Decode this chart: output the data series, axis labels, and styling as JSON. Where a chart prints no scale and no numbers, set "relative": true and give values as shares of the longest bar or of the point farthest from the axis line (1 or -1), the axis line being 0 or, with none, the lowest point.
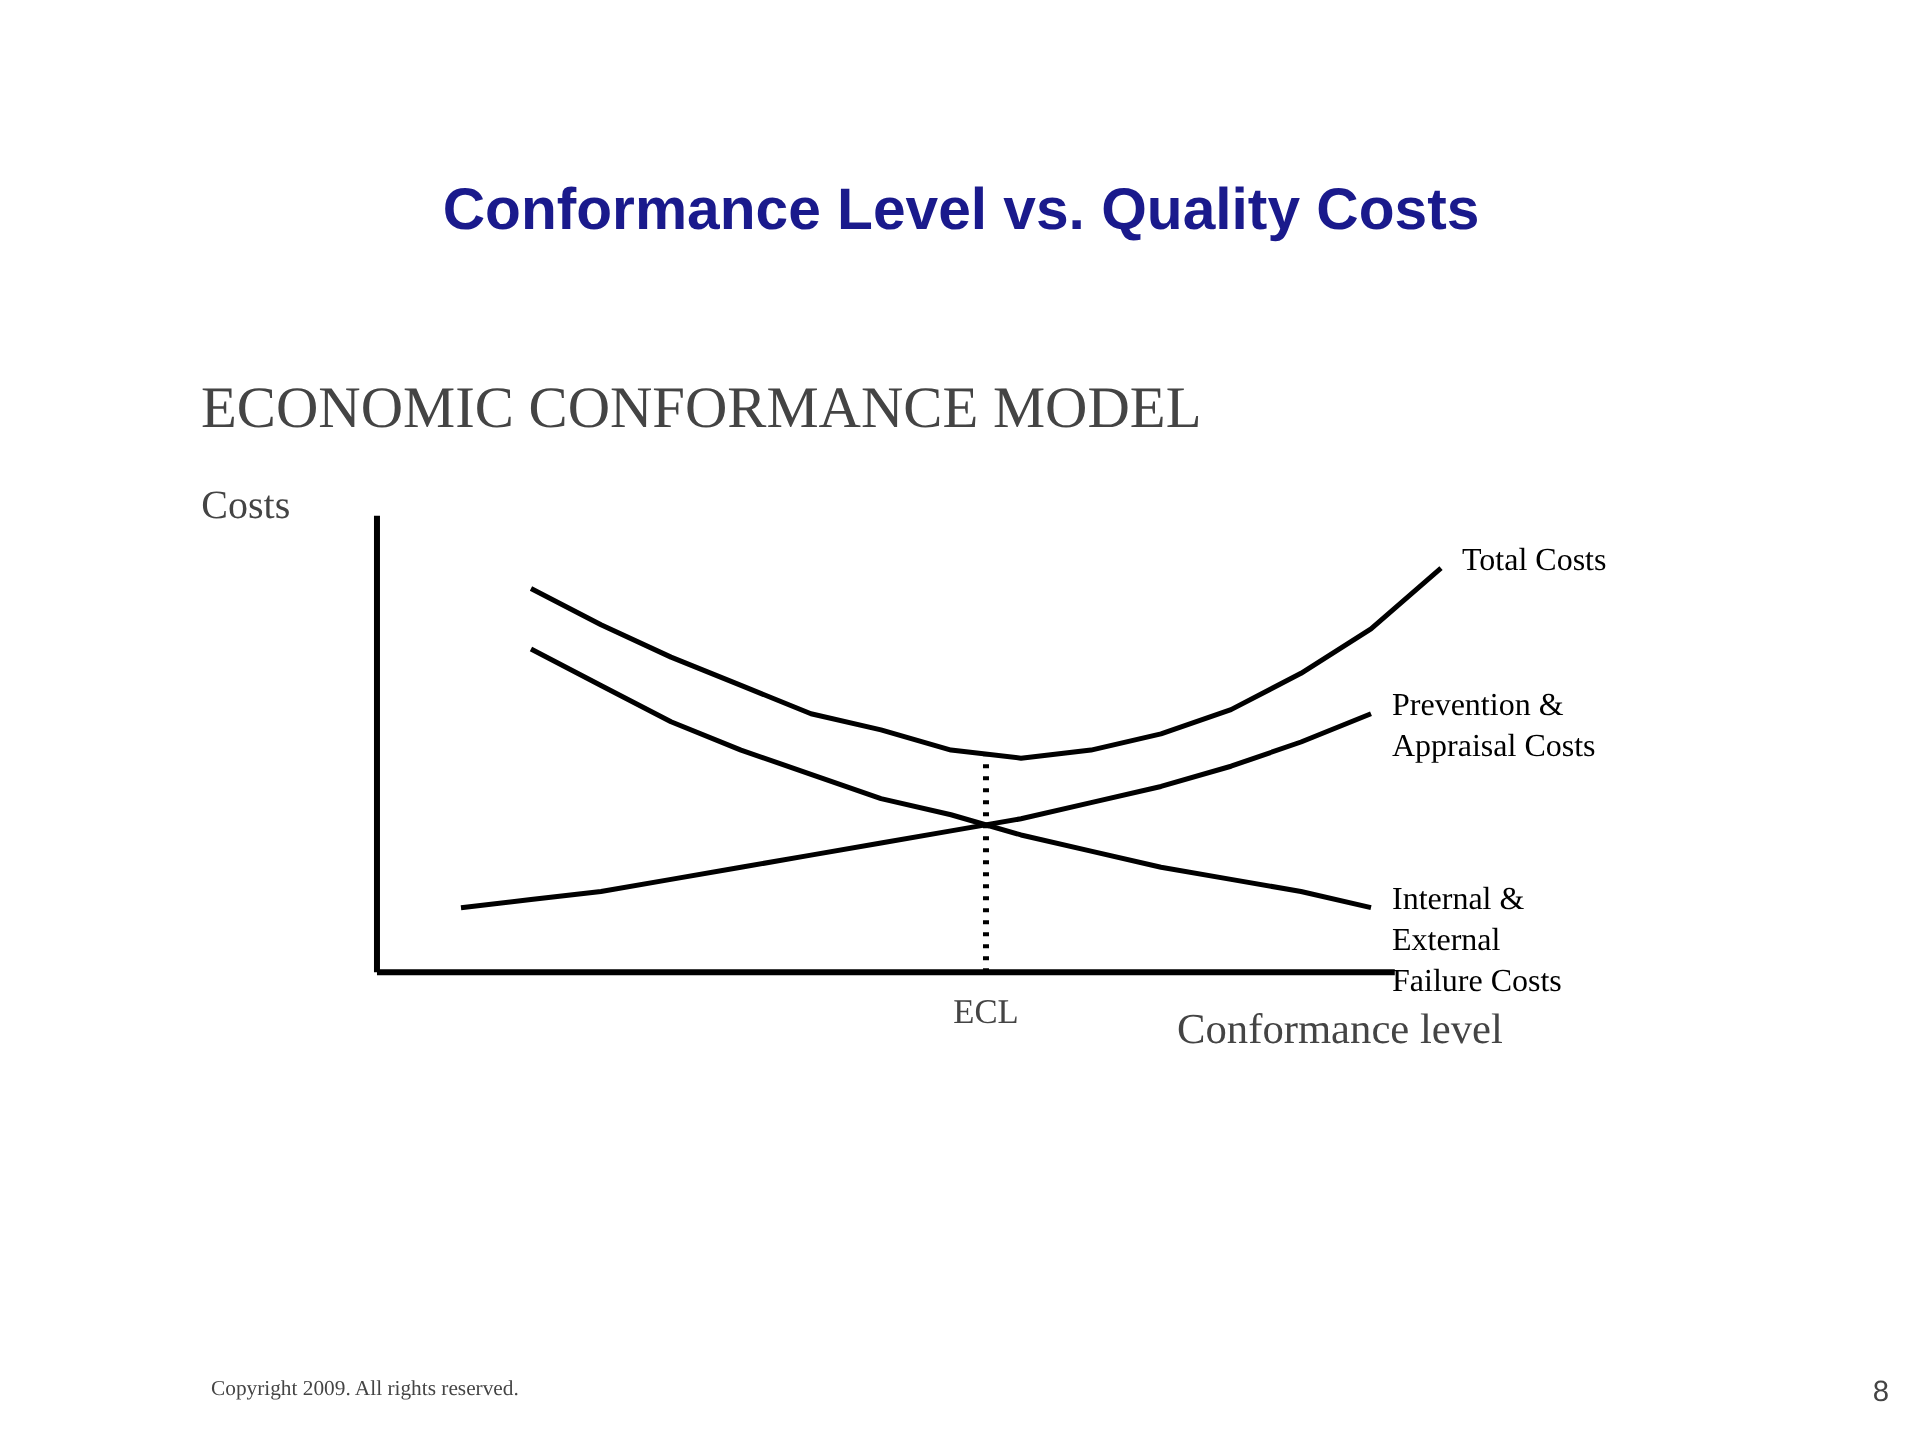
{
  "chart_data": {
    "type": "line",
    "title": "Conformance Level vs. Quality Costs",
    "subtitle": "ECONOMIC CONFORMANCE MODEL",
    "xlabel": "Conformance level",
    "ylabel": "Costs",
    "relative": true,
    "categories": [
      null,
      null,
      null,
      null,
      null,
      null,
      null,
      null,
      null,
      null,
      null,
      null,
      null,
      null,
      null
    ],
    "series": [
      {
        "name": "Total Costs",
        "color": "#000000",
        "values": [
          null,
          0.95,
          0.86,
          0.78,
          0.71,
          0.64,
          0.6,
          0.55,
          0.53,
          0.55,
          0.59,
          0.65,
          0.74,
          0.85,
          1.0
        ]
      },
      {
        "name": "Prevention & Appraisal Costs",
        "color": "#000000",
        "values": [
          0.16,
          0.18,
          0.2,
          0.23,
          0.26,
          0.29,
          0.32,
          0.35,
          0.38,
          0.42,
          0.46,
          0.51,
          0.57,
          0.64,
          null
        ]
      },
      {
        "name": "Internal & External Failure Costs",
        "color": "#000000",
        "values": [
          null,
          0.8,
          0.71,
          0.62,
          0.55,
          0.49,
          0.43,
          0.39,
          0.34,
          0.3,
          0.26,
          0.23,
          0.2,
          0.16,
          null
        ]
      }
    ],
    "grid": false,
    "legend": false,
    "marker": "none",
    "line_style": "solid",
    "annotations": [
      "ECL",
      "Copyright 2009. All rights reserved.",
      "8"
    ]
  }
}
